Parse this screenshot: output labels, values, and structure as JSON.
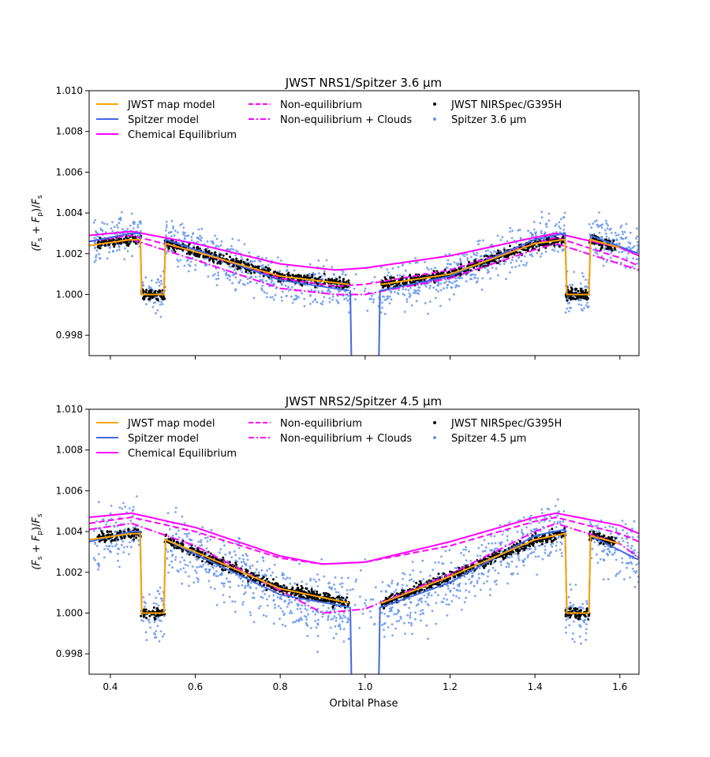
{
  "figure": {
    "xlabel": "Orbital Phase"
  },
  "chart_data": [
    {
      "type": "scatter",
      "title": "JWST NRS1/Spitzer 3.6 μm",
      "ylabel": "(F_s + F_p)/F_s",
      "xlim": [
        0.35,
        1.645
      ],
      "ylim": [
        0.997,
        1.01
      ],
      "xticks": [
        "0.4",
        "0.6",
        "0.8",
        "1.0",
        "1.2",
        "1.4",
        "1.6"
      ],
      "xtick_values": [
        0.4,
        0.6,
        0.8,
        1.0,
        1.2,
        1.4,
        1.6
      ],
      "show_xtick_labels": false,
      "yticks": [
        "0.998",
        "1.000",
        "1.002",
        "1.004",
        "1.006",
        "1.008",
        "1.010"
      ],
      "ytick_values": [
        0.998,
        1.0,
        1.002,
        1.004,
        1.006,
        1.008,
        1.01
      ],
      "legend": {
        "placement": "top",
        "entries": [
          {
            "label": "JWST map model",
            "style": "solid",
            "color": "#ffa500"
          },
          {
            "label": "Spitzer model",
            "style": "solid",
            "color": "#4169e1"
          },
          {
            "label": "Chemical Equilibrium",
            "style": "solid",
            "color": "#ff00ff"
          },
          {
            "label": "Non-equilibrium",
            "style": "dashed",
            "color": "#ff00ff"
          },
          {
            "label": "Non-equilibrium + Clouds",
            "style": "dashdot",
            "color": "#ff00ff"
          },
          {
            "label": "JWST NIRSpec/G395H",
            "style": "dot",
            "color": "#000000"
          },
          {
            "label": "Spitzer 3.6 μm",
            "style": "dot",
            "color": "#6495ed"
          }
        ]
      },
      "series": [
        {
          "name": "JWST map model",
          "color": "#ffa500",
          "x": [
            0.35,
            0.45,
            0.47,
            0.53,
            0.6,
            0.8,
            0.96,
            1.04,
            1.2,
            1.4,
            1.47,
            1.53,
            1.6
          ],
          "y": [
            1.0024,
            1.0027,
            1.0027,
            1.0025,
            1.0021,
            1.0009,
            1.0005,
            1.0005,
            1.001,
            1.0025,
            1.0027,
            1.0027,
            1.0023
          ]
        },
        {
          "name": "Spitzer model",
          "color": "#4169e1",
          "x": [
            0.35,
            0.45,
            0.47,
            0.53,
            0.6,
            0.8,
            0.96,
            1.04,
            1.2,
            1.4,
            1.47,
            1.53,
            1.645
          ],
          "y": [
            1.0026,
            1.003,
            1.003,
            1.0027,
            1.0022,
            1.0007,
            1.0002,
            1.0002,
            1.0009,
            1.0027,
            1.003,
            1.0029,
            1.002
          ]
        },
        {
          "name": "Chemical Equilibrium",
          "color": "#ff00ff",
          "x": [
            0.35,
            0.45,
            0.6,
            0.8,
            0.93,
            1.0,
            1.2,
            1.4,
            1.45,
            1.6,
            1.645
          ],
          "y": [
            1.0029,
            1.0031,
            1.0025,
            1.0015,
            1.0012,
            1.0013,
            1.0019,
            1.0028,
            1.003,
            1.0023,
            1.0019
          ]
        },
        {
          "name": "Non-equilibrium",
          "color": "#ff00ff",
          "x": [
            0.35,
            0.45,
            0.6,
            0.8,
            0.93,
            1.0,
            1.2,
            1.4,
            1.45,
            1.6,
            1.645
          ],
          "y": [
            1.0026,
            1.0029,
            1.0021,
            1.0008,
            1.0004,
            1.0005,
            1.0012,
            1.0025,
            1.0028,
            1.0018,
            1.0014
          ]
        },
        {
          "name": "Non-equilibrium + Clouds",
          "color": "#ff00ff",
          "x": [
            0.35,
            0.45,
            0.6,
            0.8,
            0.93,
            1.0,
            1.2,
            1.4,
            1.45,
            1.6,
            1.645
          ],
          "y": [
            1.0024,
            1.0027,
            1.0017,
            1.0003,
            1.0,
            1.0,
            1.0008,
            1.0022,
            1.0025,
            1.0015,
            1.0012
          ]
        }
      ]
    },
    {
      "type": "scatter",
      "title": "JWST NRS2/Spitzer 4.5 μm",
      "ylabel": "(F_s + F_p)/F_s",
      "xlim": [
        0.35,
        1.645
      ],
      "ylim": [
        0.997,
        1.01
      ],
      "xticks": [
        "0.4",
        "0.6",
        "0.8",
        "1.0",
        "1.2",
        "1.4",
        "1.6"
      ],
      "xtick_values": [
        0.4,
        0.6,
        0.8,
        1.0,
        1.2,
        1.4,
        1.6
      ],
      "show_xtick_labels": true,
      "yticks": [
        "0.998",
        "1.000",
        "1.002",
        "1.004",
        "1.006",
        "1.008",
        "1.010"
      ],
      "ytick_values": [
        0.998,
        1.0,
        1.002,
        1.004,
        1.006,
        1.008,
        1.01
      ],
      "legend": {
        "placement": "top",
        "entries": [
          {
            "label": "JWST map model",
            "style": "solid",
            "color": "#ffa500"
          },
          {
            "label": "Spitzer model",
            "style": "solid",
            "color": "#4169e1"
          },
          {
            "label": "Chemical Equilibrium",
            "style": "solid",
            "color": "#ff00ff"
          },
          {
            "label": "Non-equilibrium",
            "style": "dashed",
            "color": "#ff00ff"
          },
          {
            "label": "Non-equilibrium + Clouds",
            "style": "dashdot",
            "color": "#ff00ff"
          },
          {
            "label": "JWST NIRSpec/G395H",
            "style": "dot",
            "color": "#000000"
          },
          {
            "label": "Spitzer 4.5 μm",
            "style": "dot",
            "color": "#6495ed"
          }
        ]
      },
      "series": [
        {
          "name": "JWST map model",
          "color": "#ffa500",
          "x": [
            0.35,
            0.45,
            0.47,
            0.53,
            0.6,
            0.8,
            0.96,
            1.04,
            1.2,
            1.4,
            1.47,
            1.53,
            1.6
          ],
          "y": [
            1.0036,
            1.0039,
            1.0039,
            1.0036,
            1.003,
            1.0012,
            1.0005,
            1.0005,
            1.0018,
            1.0036,
            1.0039,
            1.0038,
            1.0034
          ]
        },
        {
          "name": "Spitzer model",
          "color": "#4169e1",
          "x": [
            0.35,
            0.45,
            0.47,
            0.53,
            0.6,
            0.8,
            0.96,
            1.04,
            1.2,
            1.4,
            1.47,
            1.53,
            1.645
          ],
          "y": [
            1.0035,
            1.004,
            1.004,
            1.0036,
            1.0029,
            1.0009,
            1.0003,
            1.0003,
            1.0015,
            1.0038,
            1.0041,
            1.0038,
            1.0026
          ]
        },
        {
          "name": "Chemical Equilibrium",
          "color": "#ff00ff",
          "x": [
            0.35,
            0.45,
            0.6,
            0.8,
            0.9,
            1.0,
            1.2,
            1.4,
            1.45,
            1.6,
            1.645
          ],
          "y": [
            1.0047,
            1.0049,
            1.0042,
            1.0028,
            1.0024,
            1.0025,
            1.0035,
            1.0047,
            1.0049,
            1.0043,
            1.0039
          ]
        },
        {
          "name": "Non-equilibrium",
          "color": "#ff00ff",
          "x": [
            0.35,
            0.45,
            0.6,
            0.8,
            0.9,
            1.0,
            1.2,
            1.4,
            1.45,
            1.6,
            1.645
          ],
          "y": [
            1.0044,
            1.0047,
            1.004,
            1.0027,
            1.0024,
            1.0025,
            1.0033,
            1.0045,
            1.0047,
            1.0039,
            1.0035
          ]
        },
        {
          "name": "Non-equilibrium + Clouds",
          "color": "#ff00ff",
          "x": [
            0.35,
            0.45,
            0.6,
            0.8,
            0.9,
            1.0,
            1.2,
            1.4,
            1.45,
            1.6,
            1.645
          ],
          "y": [
            1.0041,
            1.0044,
            1.0033,
            1.0011,
            1.0,
            1.0002,
            1.0019,
            1.004,
            1.0044,
            1.0034,
            1.0027
          ]
        }
      ]
    }
  ]
}
